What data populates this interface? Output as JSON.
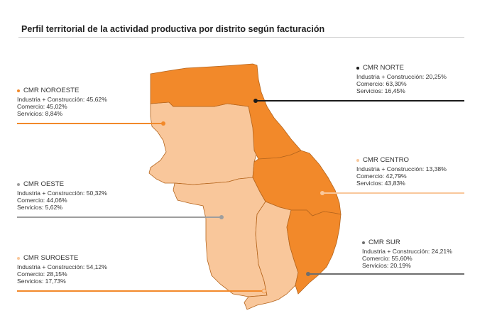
{
  "title": "Perfil territorial de la actividad productiva por distrito según facturación",
  "colors": {
    "dark_orange": "#f2892a",
    "light_orange": "#f9c79b",
    "border": "#b5651d"
  },
  "districts": [
    {
      "id": "noroeste",
      "name": "CMR NOROESTE",
      "industria": "Industria + Construcción: 45,62%",
      "comercio": "Comercio: 45,02%",
      "servicios": "Servicios: 8,84%",
      "color": "#f2892a",
      "dot_color": "#f2892a",
      "line_color": "#f2892a"
    },
    {
      "id": "norte",
      "name": "CMR NORTE",
      "industria": "Industria + Construcción: 20,25%",
      "comercio": "Comercio: 63,30%",
      "servicios": "Servicios: 16,45%",
      "color": "#f2892a",
      "dot_color": "#1a1a1a",
      "line_color": "#1a1a1a"
    },
    {
      "id": "oeste",
      "name": "CMR OESTE",
      "industria": "Industria + Construcción: 50,32%",
      "comercio": "Comercio: 44,06%",
      "servicios": "Servicios: 5,62%",
      "color": "#f9c79b",
      "dot_color": "#9e9e9e",
      "line_color": "#9e9e9e"
    },
    {
      "id": "centro",
      "name": "CMR CENTRO",
      "industria": "Industria + Construcción: 13,38%",
      "comercio": "Comercio: 42,79%",
      "servicios": "Servicios: 43,83%",
      "color": "#f2892a",
      "dot_color": "#f9c79b",
      "line_color": "#f9c79b"
    },
    {
      "id": "sur",
      "name": "CMR SUR",
      "industria": "Industria + Construcción: 24,21%",
      "comercio": "Comercio: 55,60%",
      "servicios": "Servicios: 20,19%",
      "color": "#f2892a",
      "dot_color": "#6e6e6e",
      "line_color": "#6e6e6e"
    },
    {
      "id": "suroeste",
      "name": "CMR SUROESTE",
      "industria": "Industria + Construcción: 54,12%",
      "comercio": "Comercio: 28,15%",
      "servicios": "Servicios: 17,73%",
      "color": "#f9c79b",
      "dot_color": "#f9c79b",
      "line_color": "#f2892a"
    }
  ]
}
